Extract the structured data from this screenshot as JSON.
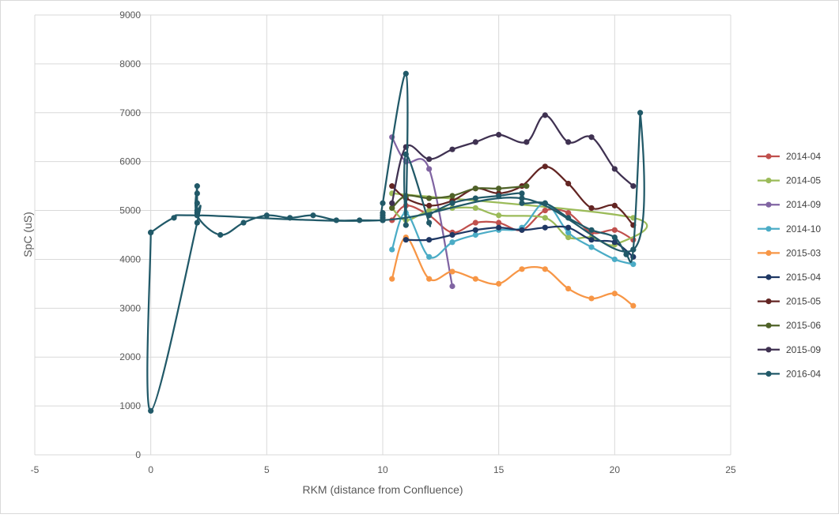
{
  "chart_data": {
    "type": "scatter",
    "title": "",
    "xlabel": "RKM (distance from Confluence)",
    "ylabel": "SpC (uS)",
    "xlim": [
      -5,
      25
    ],
    "ylim": [
      0,
      9000
    ],
    "xticks": [
      -5,
      0,
      5,
      10,
      15,
      20,
      25
    ],
    "yticks": [
      0,
      1000,
      2000,
      3000,
      4000,
      5000,
      6000,
      7000,
      8000,
      9000
    ],
    "grid": true,
    "legend": "right",
    "smooth_lines": true,
    "series": [
      {
        "name": "2014-04",
        "color": "#c0504d",
        "points": [
          [
            10.4,
            4800
          ],
          [
            11,
            5100
          ],
          [
            12,
            4900
          ],
          [
            13,
            4550
          ],
          [
            14,
            4750
          ],
          [
            15,
            4750
          ],
          [
            16,
            4600
          ],
          [
            17,
            5000
          ],
          [
            18,
            4950
          ],
          [
            19,
            4550
          ],
          [
            20,
            4600
          ],
          [
            20.8,
            4400
          ]
        ]
      },
      {
        "name": "2014-05",
        "color": "#9bbb59",
        "points": [
          [
            10.4,
            5050
          ],
          [
            11,
            4800
          ],
          [
            12,
            5000
          ],
          [
            13,
            5050
          ],
          [
            14,
            5050
          ],
          [
            15,
            4900
          ],
          [
            17,
            4850
          ],
          [
            18,
            4450
          ],
          [
            19,
            4450
          ],
          [
            20,
            4300
          ],
          [
            20.8,
            4850
          ],
          [
            10.4,
            5350
          ]
        ]
      },
      {
        "name": "2014-09",
        "color": "#8064a2",
        "points": [
          [
            10.4,
            6500
          ],
          [
            11,
            6000
          ],
          [
            12,
            5850
          ],
          [
            13,
            3450
          ]
        ]
      },
      {
        "name": "2014-10",
        "color": "#4bacc6",
        "points": [
          [
            10.4,
            4200
          ],
          [
            11,
            4950
          ],
          [
            12,
            4050
          ],
          [
            13,
            4350
          ],
          [
            14,
            4500
          ],
          [
            15,
            4600
          ],
          [
            16,
            4650
          ],
          [
            17,
            5150
          ],
          [
            18,
            4550
          ],
          [
            19,
            4250
          ],
          [
            20,
            4000
          ],
          [
            20.8,
            3900
          ]
        ]
      },
      {
        "name": "2015-03",
        "color": "#f79646",
        "points": [
          [
            10.4,
            3600
          ],
          [
            11,
            4450
          ],
          [
            12,
            3600
          ],
          [
            13,
            3750
          ],
          [
            14,
            3600
          ],
          [
            15,
            3500
          ],
          [
            16,
            3800
          ],
          [
            17,
            3800
          ],
          [
            18,
            3400
          ],
          [
            19,
            3200
          ],
          [
            20,
            3300
          ],
          [
            20.8,
            3050
          ]
        ]
      },
      {
        "name": "2015-04",
        "color": "#1f3864",
        "points": [
          [
            11,
            4400
          ],
          [
            12,
            4400
          ],
          [
            13,
            4500
          ],
          [
            14,
            4600
          ],
          [
            15,
            4650
          ],
          [
            16,
            4600
          ],
          [
            17,
            4650
          ],
          [
            18,
            4650
          ],
          [
            19,
            4400
          ],
          [
            20,
            4350
          ],
          [
            20.8,
            4050
          ]
        ]
      },
      {
        "name": "2015-05",
        "color": "#632523",
        "points": [
          [
            10.4,
            5500
          ],
          [
            11,
            5250
          ],
          [
            12,
            5100
          ],
          [
            13,
            5200
          ],
          [
            14,
            5450
          ],
          [
            15,
            5350
          ],
          [
            16,
            5500
          ],
          [
            17,
            5900
          ],
          [
            18,
            5550
          ],
          [
            19,
            5050
          ],
          [
            20,
            5100
          ],
          [
            20.8,
            4700
          ]
        ]
      },
      {
        "name": "2015-06",
        "color": "#4f6228",
        "points": [
          [
            10.4,
            5050
          ],
          [
            11,
            5300
          ],
          [
            12,
            5250
          ],
          [
            13,
            5300
          ],
          [
            14,
            5450
          ],
          [
            15,
            5450
          ],
          [
            16.2,
            5500
          ]
        ]
      },
      {
        "name": "2015-09",
        "color": "#3f3151",
        "points": [
          [
            10.4,
            5150
          ],
          [
            11,
            6300
          ],
          [
            12,
            6050
          ],
          [
            13,
            6250
          ],
          [
            14,
            6400
          ],
          [
            15,
            6550
          ],
          [
            16.2,
            6400
          ],
          [
            17,
            6950
          ],
          [
            18,
            6400
          ],
          [
            19,
            6500
          ],
          [
            20,
            5850
          ],
          [
            20.8,
            5500
          ]
        ]
      },
      {
        "name": "2016-04",
        "color": "#215968",
        "points": [
          [
            0,
            4550
          ],
          [
            0,
            900
          ],
          [
            2,
            4750
          ],
          [
            2,
            4950
          ],
          [
            2,
            5000
          ],
          [
            2,
            5150
          ],
          [
            2,
            5350
          ],
          [
            2,
            5500
          ],
          [
            2,
            4900
          ],
          [
            3,
            4500
          ],
          [
            4,
            4750
          ],
          [
            5,
            4900
          ],
          [
            6,
            4850
          ],
          [
            7,
            4900
          ],
          [
            8,
            4800
          ],
          [
            9,
            4800
          ],
          [
            10,
            4800
          ],
          [
            10,
            4850
          ],
          [
            10,
            4900
          ],
          [
            10,
            4950
          ],
          [
            10,
            5150
          ],
          [
            11,
            7800
          ],
          [
            11,
            4700
          ],
          [
            11,
            6150
          ],
          [
            12,
            4750
          ],
          [
            12,
            4900
          ],
          [
            13,
            5150
          ],
          [
            14,
            5250
          ],
          [
            15,
            5300
          ],
          [
            16,
            5350
          ],
          [
            16,
            5150
          ],
          [
            17,
            5150
          ],
          [
            18,
            4850
          ],
          [
            19,
            4600
          ],
          [
            20,
            4450
          ],
          [
            20.5,
            4100
          ],
          [
            20.8,
            4200
          ],
          [
            21.1,
            7000
          ],
          [
            20.8,
            4200
          ],
          [
            16,
            5250
          ],
          [
            10,
            4800
          ],
          [
            2,
            4900
          ],
          [
            1,
            4850
          ],
          [
            0,
            4550
          ]
        ]
      }
    ]
  }
}
